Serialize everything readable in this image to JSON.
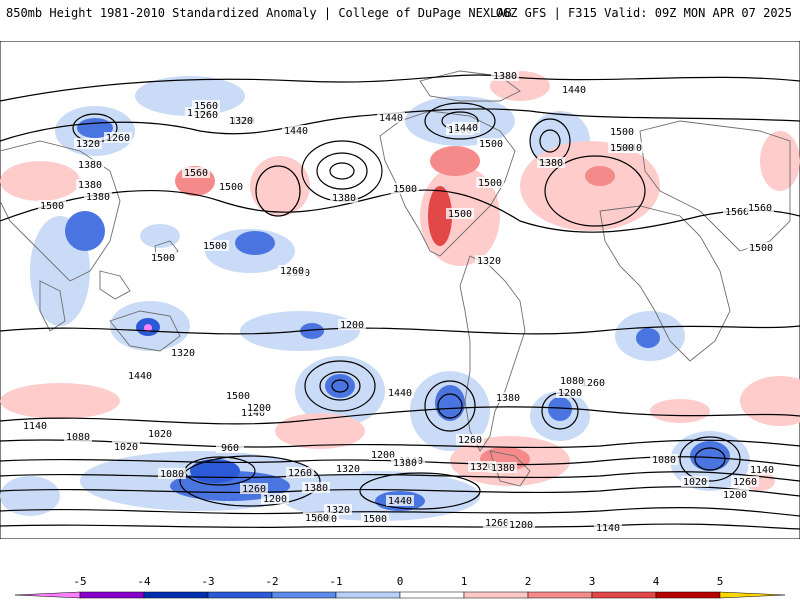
{
  "header": {
    "title_left": "850mb Height 1981-2010 Standardized Anomaly | College of DuPage NEXLAB",
    "title_right": "06Z GFS | F315 Valid: 09Z MON APR 07 2025"
  },
  "contour_labels": [
    "1380",
    "1440",
    "1500",
    "1320",
    "1260",
    "1380",
    "1560",
    "1500",
    "1440",
    "1500",
    "1560",
    "1500",
    "1260",
    "1320",
    "1380",
    "1380",
    "1500",
    "1380",
    "1500",
    "1440",
    "1440",
    "1500",
    "1380",
    "1500",
    "1500",
    "1500",
    "1440",
    "1500",
    "1560",
    "1560",
    "1500",
    "1500",
    "1500",
    "1380",
    "1320",
    "1260",
    "1200",
    "1320",
    "1440",
    "1500",
    "1440",
    "1380",
    "1260",
    "1200",
    "1140",
    "1080",
    "1020",
    "960",
    "1020",
    "1080",
    "1140",
    "1200",
    "1260",
    "1320",
    "1080",
    "1140",
    "1200",
    "1260",
    "1320",
    "1380",
    "1380",
    "1200",
    "1260",
    "1320",
    "1380",
    "1440",
    "1500",
    "1560",
    "1380",
    "1260",
    "1200",
    "1140",
    "1080",
    "1020",
    "1200",
    "1260",
    "1140"
  ],
  "colorbar": {
    "ticks": [
      "-5",
      "-4",
      "-3",
      "-2",
      "-1",
      "0",
      "1",
      "2",
      "3",
      "4",
      "5"
    ],
    "colors": [
      "#ff80ff",
      "#8800cc",
      "#0030b0",
      "#2a5ad8",
      "#5d8ae8",
      "#b8d0f5",
      "#ffffff",
      "#ffc8c8",
      "#f58a8a",
      "#e24848",
      "#b80000",
      "#ffa500",
      "#ffd700"
    ]
  },
  "legend": {
    "positive_color": "#f58a8a",
    "light_positive_color": "#ffcccc",
    "negative_color": "#4a74e0",
    "light_negative_color": "#c9dbf6",
    "contour_color": "#000000",
    "coast_color": "#6e6e6e"
  }
}
